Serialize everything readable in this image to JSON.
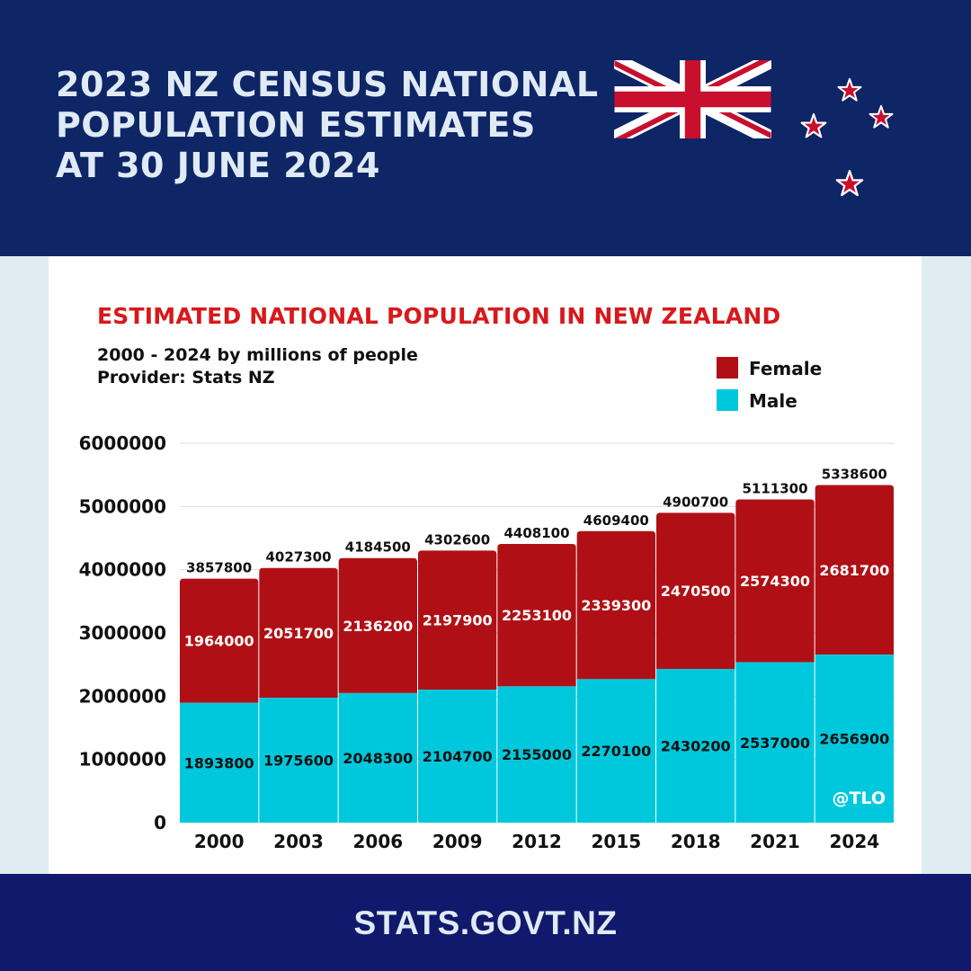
{
  "header": {
    "title_lines": [
      "2023 NZ CENSUS NATIONAL",
      "POPULATION ESTIMATES",
      "AT 30 JUNE 2024"
    ],
    "background_color": "#0e2566",
    "flag_icon": "union-jack-icon",
    "star_icons": [
      "red-star-icon",
      "red-star-icon",
      "red-star-icon",
      "red-star-icon"
    ]
  },
  "chart_data": {
    "type": "bar",
    "stacked": true,
    "title": "ESTIMATED NATIONAL POPULATION IN NEW ZEALAND",
    "subtitle": "2000 - 2024 by millions of people",
    "provider": "Provider: Stats NZ",
    "categories": [
      "2000",
      "2003",
      "2006",
      "2009",
      "2012",
      "2015",
      "2018",
      "2021",
      "2024"
    ],
    "series": [
      {
        "name": "Male",
        "color": "#00c8dc",
        "values": [
          1893800,
          1975600,
          2048300,
          2104700,
          2155000,
          2270100,
          2430200,
          2537000,
          2656900
        ]
      },
      {
        "name": "Female",
        "color": "#b01015",
        "values": [
          1964000,
          2051700,
          2136200,
          2197900,
          2253100,
          2339300,
          2470500,
          2574300,
          2681700
        ]
      }
    ],
    "totals": [
      3857800,
      4027300,
      4184500,
      4302600,
      4408100,
      4609400,
      4900700,
      5111300,
      5338600
    ],
    "yticks": [
      "0",
      "1000000",
      "2000000",
      "3000000",
      "4000000",
      "5000000",
      "6000000"
    ],
    "ylim": [
      0,
      6000000
    ],
    "xlabel": "",
    "ylabel": "",
    "grid": true,
    "legend_position": "top-right",
    "legend_order": [
      "Female",
      "Male"
    ],
    "watermark": "@TLO"
  },
  "footer": {
    "text": "STATS.GOVT.NZ",
    "background_color": "#10196b"
  }
}
